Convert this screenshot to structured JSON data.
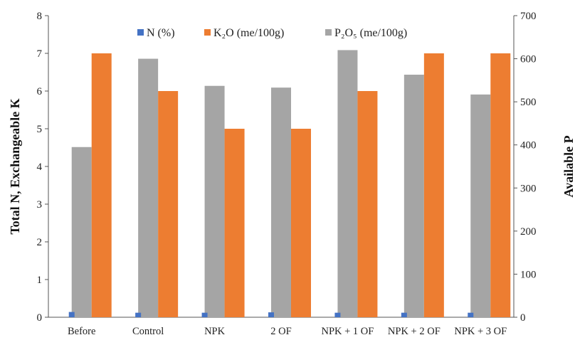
{
  "chart_data": {
    "type": "bar",
    "categories": [
      "Before",
      "Control",
      "NPK",
      "2 OF",
      "NPK + 1 OF",
      "NPK + 2 OF",
      "NPK + 3 OF"
    ],
    "series": [
      {
        "name": "N (%)",
        "axis": "left",
        "color": "#4472C4",
        "values": [
          0.14,
          0.12,
          0.12,
          0.13,
          0.12,
          0.12,
          0.12
        ]
      },
      {
        "name": "K₂O (me/100g)",
        "axis": "left",
        "color": "#ED7D31",
        "values": [
          7,
          6,
          5,
          5,
          6,
          7,
          7
        ]
      },
      {
        "name": "P₂O₅ (me/100g)",
        "axis": "right",
        "color": "#A5A5A5",
        "values": [
          395,
          600,
          537,
          533,
          620,
          563,
          517
        ]
      }
    ],
    "ylabel": "Total N, Exchangeable K",
    "y2label": "Available P",
    "ylim": [
      0,
      8
    ],
    "y2lim": [
      0,
      700
    ],
    "yticks": [
      "0",
      "1",
      "2",
      "3",
      "4",
      "5",
      "6",
      "7",
      "8"
    ],
    "y2ticks": [
      "0",
      "100",
      "200",
      "300",
      "400",
      "500",
      "600",
      "700"
    ],
    "grid": false,
    "legend": "top-center"
  }
}
